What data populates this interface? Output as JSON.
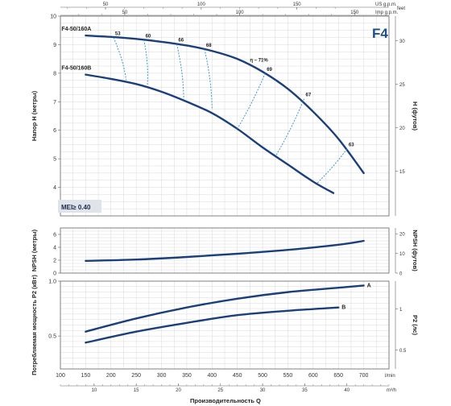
{
  "page_title": "F4",
  "mei_label": "MEI≥ 0.40",
  "colors": {
    "curve": "#1b3f7a",
    "dashed": "#2a8fc6",
    "grid": "#d9d9d9",
    "frame": "#666666"
  },
  "top_axes": {
    "us_gpm": {
      "unit": "US g.p.m.",
      "ticks": [
        50,
        100,
        150
      ]
    },
    "imp_gpm": {
      "unit": "Imp g.p.m.",
      "ticks": [
        50,
        100,
        150
      ]
    }
  },
  "bottom_axes": {
    "lmin": {
      "unit": "l/min",
      "title": "Производительность Q",
      "ticks": [
        100,
        150,
        200,
        250,
        300,
        350,
        400,
        450,
        500,
        550,
        600,
        650,
        700
      ]
    },
    "m3h": {
      "unit": "m³/h",
      "ticks": [
        10,
        15,
        20,
        25,
        30,
        35,
        40
      ]
    }
  },
  "chart_data": [
    {
      "type": "line",
      "panel": "head",
      "ylabel": "Напор H (метры)",
      "ylabel_right": "H (футов)",
      "ylabel_right_unit": "feet",
      "ylim": [
        3,
        10
      ],
      "yticks": [
        4,
        5,
        6,
        7,
        8,
        9,
        10
      ],
      "yticks_right": [
        15,
        20,
        25,
        30
      ],
      "xlim": [
        100,
        750
      ],
      "series": [
        {
          "name": "F4-50/160A",
          "x": [
            150,
            200,
            250,
            300,
            350,
            400,
            450,
            500,
            550,
            600,
            650,
            700
          ],
          "y": [
            9.32,
            9.27,
            9.2,
            9.1,
            8.97,
            8.78,
            8.5,
            8.05,
            7.45,
            6.65,
            5.7,
            4.5
          ]
        },
        {
          "name": "F4-50/160B",
          "x": [
            150,
            200,
            250,
            300,
            350,
            400,
            450,
            500,
            550,
            600,
            640
          ],
          "y": [
            7.95,
            7.8,
            7.62,
            7.35,
            7.0,
            6.6,
            6.05,
            5.4,
            4.8,
            4.2,
            3.8
          ]
        }
      ],
      "efficiency": [
        {
          "label": "53",
          "a": [
            205,
            9.25
          ],
          "b": [
            230,
            7.77
          ]
        },
        {
          "label": "60",
          "a": [
            265,
            9.17
          ],
          "b": [
            272,
            7.57
          ]
        },
        {
          "label": "66",
          "a": [
            330,
            9.02
          ],
          "b": [
            344,
            7.05
          ]
        },
        {
          "label": "68",
          "a": [
            385,
            8.84
          ],
          "b": [
            400,
            6.75
          ]
        },
        {
          "label": "69",
          "a": [
            505,
            8.0
          ],
          "b": [
            450,
            6.05
          ]
        },
        {
          "label": "67",
          "a": [
            582,
            7.1
          ],
          "b": [
            526,
            5.1
          ]
        },
        {
          "label": "63",
          "a": [
            667,
            5.35
          ],
          "b": [
            608,
            4.15
          ]
        }
      ],
      "eta_label": "η – 71%",
      "eta_pos": [
        475,
        8.4
      ]
    },
    {
      "type": "line",
      "panel": "npsh",
      "ylabel": "NPSH (метры)",
      "ylabel_right": "NPSH (футов)",
      "ylim": [
        0,
        7
      ],
      "yticks": [
        0,
        2,
        4,
        6
      ],
      "yticks_right": [
        0,
        10,
        20
      ],
      "series": [
        {
          "name": "NPSH",
          "x": [
            150,
            250,
            350,
            450,
            550,
            650,
            700
          ],
          "y": [
            1.9,
            2.1,
            2.5,
            3.0,
            3.6,
            4.4,
            5.0
          ]
        }
      ]
    },
    {
      "type": "line",
      "panel": "power",
      "ylabel": "Потребляемая мощность P2 (кВт)",
      "ylabel_right": "P2 (лс)",
      "ylim": [
        0.2,
        1.0
      ],
      "yticks": [
        0.5,
        1.0
      ],
      "yticks_labels": [
        "0.5",
        "1.0"
      ],
      "yticks_right": [
        0.5,
        1
      ],
      "yticks_right_labels": [
        "0.5",
        "1"
      ],
      "series": [
        {
          "name": "A",
          "x": [
            150,
            250,
            350,
            450,
            550,
            650,
            700
          ],
          "y": [
            0.54,
            0.66,
            0.76,
            0.84,
            0.9,
            0.94,
            0.96
          ]
        },
        {
          "name": "B",
          "x": [
            150,
            250,
            350,
            450,
            550,
            650
          ],
          "y": [
            0.44,
            0.54,
            0.62,
            0.69,
            0.73,
            0.76
          ]
        }
      ]
    }
  ]
}
